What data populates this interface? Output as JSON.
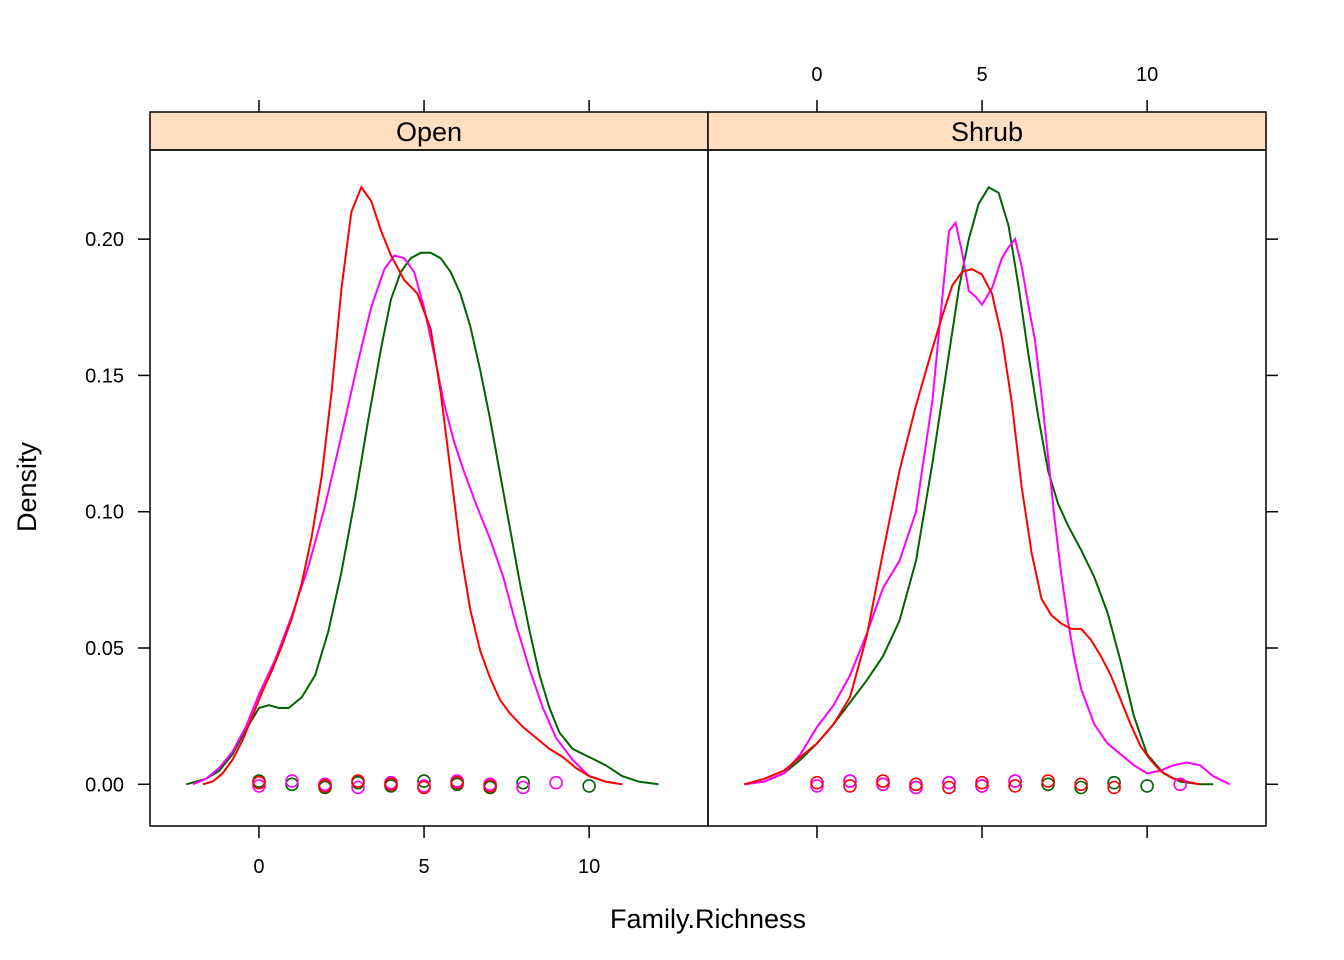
{
  "chart_data": {
    "type": "line",
    "title": "",
    "xlabel": "Family.Richness",
    "ylabel": "Density",
    "xlim": [
      -3.3,
      13.6
    ],
    "ylim": [
      -0.0153,
      0.2327
    ],
    "x_ticks": [
      0,
      5,
      10
    ],
    "y_ticks": [
      0.0,
      0.05,
      0.1,
      0.15,
      0.2
    ],
    "y_tick_labels": [
      "0.00",
      "0.05",
      "0.10",
      "0.15",
      "0.20"
    ],
    "grid": false,
    "legend": "none",
    "colors": {
      "strip": "#ffdfbf",
      "green": "#006400",
      "magenta": "#ff00ff",
      "red": "#ff0000"
    },
    "panels": [
      {
        "name": "Open",
        "series": [
          {
            "color": "#006400",
            "x": [
              -2.2,
              -1.6,
              -1.2,
              -0.8,
              -0.4,
              0,
              0.3,
              0.6,
              0.9,
              1.3,
              1.7,
              2.1,
              2.5,
              2.9,
              3.3,
              3.7,
              4.0,
              4.3,
              4.6,
              4.9,
              5.2,
              5.5,
              5.8,
              6.1,
              6.4,
              6.7,
              7.0,
              7.3,
              7.6,
              7.9,
              8.2,
              8.5,
              8.8,
              9.1,
              9.5,
              10.0,
              10.5,
              11.0,
              11.5,
              12.1
            ],
            "y": [
              0.0,
              0.002,
              0.005,
              0.011,
              0.02,
              0.028,
              0.029,
              0.028,
              0.028,
              0.032,
              0.04,
              0.056,
              0.078,
              0.104,
              0.133,
              0.16,
              0.178,
              0.188,
              0.193,
              0.195,
              0.195,
              0.193,
              0.188,
              0.18,
              0.168,
              0.152,
              0.134,
              0.114,
              0.094,
              0.074,
              0.056,
              0.04,
              0.028,
              0.019,
              0.013,
              0.01,
              0.007,
              0.003,
              0.001,
              0.0
            ]
          },
          {
            "color": "#ff00ff",
            "x": [
              -2.0,
              -1.6,
              -1.2,
              -0.8,
              -0.4,
              0,
              0.5,
              1.0,
              1.5,
              2.0,
              2.5,
              3.0,
              3.4,
              3.8,
              4.1,
              4.4,
              4.7,
              5.0,
              5.3,
              5.6,
              5.9,
              6.2,
              6.6,
              7.0,
              7.4,
              7.8,
              8.2,
              8.6,
              9.0,
              9.5,
              10.0,
              10.5,
              11.0
            ],
            "y": [
              0.0,
              0.002,
              0.006,
              0.012,
              0.021,
              0.033,
              0.046,
              0.062,
              0.08,
              0.102,
              0.128,
              0.155,
              0.175,
              0.189,
              0.194,
              0.193,
              0.188,
              0.175,
              0.158,
              0.14,
              0.126,
              0.115,
              0.102,
              0.09,
              0.076,
              0.058,
              0.042,
              0.028,
              0.017,
              0.009,
              0.003,
              0.001,
              0.0
            ]
          },
          {
            "color": "#ff0000",
            "x": [
              -1.7,
              -1.4,
              -1.1,
              -0.8,
              -0.5,
              -0.2,
              0.1,
              0.4,
              0.7,
              1.0,
              1.3,
              1.6,
              1.9,
              2.2,
              2.5,
              2.8,
              3.1,
              3.4,
              3.7,
              4.0,
              4.4,
              4.8,
              5.2,
              5.5,
              5.8,
              6.1,
              6.4,
              6.7,
              7.0,
              7.3,
              7.6,
              8.0,
              8.4,
              8.8,
              9.2,
              9.6,
              10.0,
              10.5,
              11.0
            ],
            "y": [
              0.0,
              0.001,
              0.004,
              0.009,
              0.016,
              0.025,
              0.034,
              0.042,
              0.051,
              0.061,
              0.074,
              0.091,
              0.113,
              0.144,
              0.182,
              0.21,
              0.219,
              0.214,
              0.203,
              0.194,
              0.185,
              0.18,
              0.167,
              0.144,
              0.115,
              0.086,
              0.064,
              0.049,
              0.039,
              0.031,
              0.026,
              0.021,
              0.017,
              0.013,
              0.01,
              0.006,
              0.003,
              0.001,
              0.0
            ]
          }
        ],
        "points": [
          {
            "color": "#006400",
            "x": [
              0,
              1,
              2,
              3,
              4,
              5,
              6,
              7,
              8,
              10
            ]
          },
          {
            "color": "#ff00ff",
            "x": [
              0,
              1,
              2,
              3,
              4,
              5,
              6,
              7,
              8,
              9
            ]
          },
          {
            "color": "#ff0000",
            "x": [
              0,
              2,
              3,
              4,
              5,
              6,
              7
            ]
          }
        ]
      },
      {
        "name": "Shrub",
        "series": [
          {
            "color": "#006400",
            "x": [
              -2.2,
              -1.6,
              -1.0,
              -0.5,
              0,
              0.5,
              1.0,
              1.5,
              2.0,
              2.5,
              3.0,
              3.5,
              4.0,
              4.3,
              4.6,
              4.9,
              5.2,
              5.5,
              5.8,
              6.1,
              6.4,
              6.7,
              7.0,
              7.3,
              7.6,
              8.0,
              8.4,
              8.8,
              9.2,
              9.6,
              10.0,
              10.5,
              11.0,
              11.6,
              12.0
            ],
            "y": [
              0.0,
              0.001,
              0.004,
              0.009,
              0.015,
              0.022,
              0.03,
              0.038,
              0.047,
              0.06,
              0.082,
              0.118,
              0.158,
              0.182,
              0.2,
              0.213,
              0.219,
              0.217,
              0.205,
              0.183,
              0.158,
              0.135,
              0.115,
              0.103,
              0.095,
              0.086,
              0.076,
              0.063,
              0.045,
              0.025,
              0.011,
              0.004,
              0.001,
              0.0,
              0.0
            ]
          },
          {
            "color": "#ff00ff",
            "x": [
              -2.2,
              -1.6,
              -1.0,
              -0.5,
              0,
              0.5,
              1.0,
              1.5,
              2.0,
              2.5,
              3.0,
              3.5,
              3.8,
              4.0,
              4.2,
              4.4,
              4.6,
              4.8,
              5.0,
              5.3,
              5.6,
              5.8,
              6.0,
              6.2,
              6.4,
              6.6,
              6.8,
              7.0,
              7.2,
              7.4,
              7.6,
              7.8,
              8.0,
              8.4,
              8.8,
              9.2,
              9.6,
              10.0,
              10.4,
              10.8,
              11.2,
              11.6,
              12.0,
              12.5
            ],
            "y": [
              0.0,
              0.001,
              0.004,
              0.011,
              0.021,
              0.029,
              0.04,
              0.055,
              0.072,
              0.082,
              0.1,
              0.141,
              0.179,
              0.203,
              0.206,
              0.195,
              0.181,
              0.179,
              0.176,
              0.182,
              0.193,
              0.197,
              0.2,
              0.19,
              0.176,
              0.163,
              0.143,
              0.12,
              0.097,
              0.077,
              0.06,
              0.046,
              0.035,
              0.022,
              0.015,
              0.011,
              0.007,
              0.004,
              0.005,
              0.007,
              0.008,
              0.007,
              0.003,
              0.0
            ]
          },
          {
            "color": "#ff0000",
            "x": [
              -2.2,
              -1.6,
              -1.0,
              -0.5,
              0,
              0.5,
              1.0,
              1.5,
              2.0,
              2.5,
              3.0,
              3.5,
              3.8,
              4.1,
              4.4,
              4.7,
              5.0,
              5.3,
              5.6,
              5.9,
              6.2,
              6.5,
              6.8,
              7.1,
              7.4,
              7.7,
              8.0,
              8.3,
              8.6,
              8.9,
              9.2,
              9.5,
              9.8,
              10.1,
              10.4,
              10.8,
              11.2,
              11.6
            ],
            "y": [
              0.0,
              0.002,
              0.005,
              0.01,
              0.015,
              0.022,
              0.032,
              0.054,
              0.085,
              0.115,
              0.139,
              0.16,
              0.172,
              0.183,
              0.188,
              0.189,
              0.187,
              0.18,
              0.164,
              0.14,
              0.109,
              0.085,
              0.068,
              0.062,
              0.059,
              0.057,
              0.057,
              0.053,
              0.047,
              0.04,
              0.031,
              0.022,
              0.014,
              0.009,
              0.005,
              0.002,
              0.001,
              0.0
            ]
          }
        ],
        "points": [
          {
            "color": "#006400",
            "x": [
              1,
              2,
              3,
              4,
              5,
              6,
              7,
              8,
              9,
              10
            ]
          },
          {
            "color": "#ff00ff",
            "x": [
              0,
              1,
              2,
              3,
              4,
              5,
              6,
              11
            ]
          },
          {
            "color": "#ff0000",
            "x": [
              0,
              1,
              2,
              3,
              4,
              5,
              6,
              7,
              8,
              9
            ]
          }
        ]
      }
    ]
  }
}
